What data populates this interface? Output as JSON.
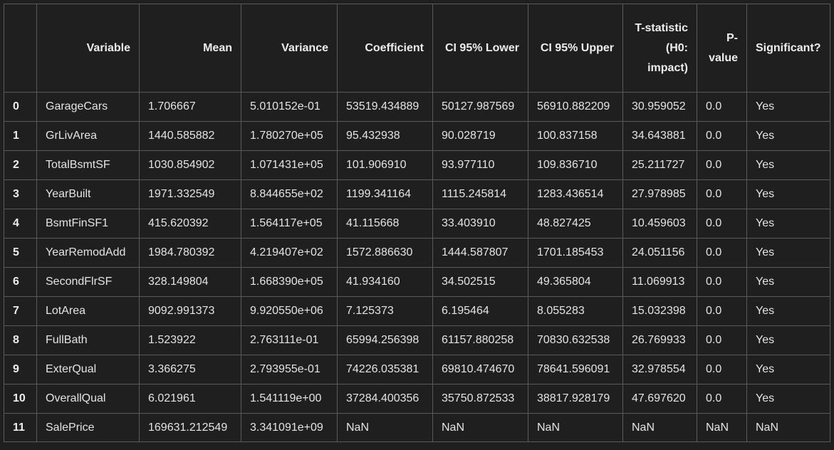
{
  "table": {
    "columns": [
      "",
      "Variable",
      "Mean",
      "Variance",
      "Coefficient",
      "CI 95% Lower",
      "CI 95% Upper",
      "T-statistic (H0: impact)",
      "P-value",
      "Significant?"
    ],
    "rows": [
      [
        "0",
        "GarageCars",
        "1.706667",
        "5.010152e-01",
        "53519.434889",
        "50127.987569",
        "56910.882209",
        "30.959052",
        "0.0",
        "Yes"
      ],
      [
        "1",
        "GrLivArea",
        "1440.585882",
        "1.780270e+05",
        "95.432938",
        "90.028719",
        "100.837158",
        "34.643881",
        "0.0",
        "Yes"
      ],
      [
        "2",
        "TotalBsmtSF",
        "1030.854902",
        "1.071431e+05",
        "101.906910",
        "93.977110",
        "109.836710",
        "25.211727",
        "0.0",
        "Yes"
      ],
      [
        "3",
        "YearBuilt",
        "1971.332549",
        "8.844655e+02",
        "1199.341164",
        "1115.245814",
        "1283.436514",
        "27.978985",
        "0.0",
        "Yes"
      ],
      [
        "4",
        "BsmtFinSF1",
        "415.620392",
        "1.564117e+05",
        "41.115668",
        "33.403910",
        "48.827425",
        "10.459603",
        "0.0",
        "Yes"
      ],
      [
        "5",
        "YearRemodAdd",
        "1984.780392",
        "4.219407e+02",
        "1572.886630",
        "1444.587807",
        "1701.185453",
        "24.051156",
        "0.0",
        "Yes"
      ],
      [
        "6",
        "SecondFlrSF",
        "328.149804",
        "1.668390e+05",
        "41.934160",
        "34.502515",
        "49.365804",
        "11.069913",
        "0.0",
        "Yes"
      ],
      [
        "7",
        "LotArea",
        "9092.991373",
        "9.920550e+06",
        "7.125373",
        "6.195464",
        "8.055283",
        "15.032398",
        "0.0",
        "Yes"
      ],
      [
        "8",
        "FullBath",
        "1.523922",
        "2.763111e-01",
        "65994.256398",
        "61157.880258",
        "70830.632538",
        "26.769933",
        "0.0",
        "Yes"
      ],
      [
        "9",
        "ExterQual",
        "3.366275",
        "2.793955e-01",
        "74226.035381",
        "69810.474670",
        "78641.596091",
        "32.978554",
        "0.0",
        "Yes"
      ],
      [
        "10",
        "OverallQual",
        "6.021961",
        "1.541119e+00",
        "37284.400356",
        "35750.872533",
        "38817.928179",
        "47.697620",
        "0.0",
        "Yes"
      ],
      [
        "11",
        "SalePrice",
        "169631.212549",
        "3.341091e+09",
        "NaN",
        "NaN",
        "NaN",
        "NaN",
        "NaN",
        "NaN"
      ]
    ]
  }
}
